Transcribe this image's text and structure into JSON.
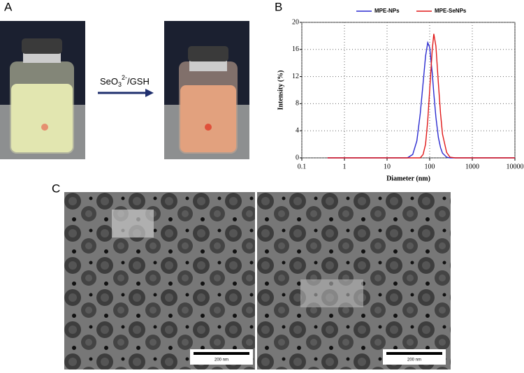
{
  "panel_labels": [
    "A",
    "B",
    "C"
  ],
  "reaction": {
    "parts": [
      "SeO",
      "3",
      "2-",
      "/GSH"
    ]
  },
  "scale_bars": [
    "200 nm",
    "200 nm"
  ],
  "chart_data": {
    "type": "line",
    "xlabel": "Diameter (nm)",
    "ylabel": "Intensity (%)",
    "x": [
      0.4,
      1,
      10,
      30,
      40,
      50,
      60,
      70,
      80,
      90,
      100,
      115,
      125,
      140,
      160,
      180,
      200,
      250,
      300,
      400,
      1000,
      10000
    ],
    "series": [
      {
        "name": "MPE-NPs",
        "color": "#2a2ad0",
        "values": [
          0,
          0,
          0,
          0,
          0.5,
          2.5,
          6.5,
          11,
          15,
          17,
          16.3,
          12.5,
          9.5,
          6,
          3,
          1.5,
          0.7,
          0.1,
          0,
          0,
          0,
          0
        ]
      },
      {
        "name": "MPE-SeNPs",
        "color": "#e01818",
        "values": [
          0,
          0,
          0,
          0,
          0,
          0,
          0,
          0.5,
          2,
          5.5,
          10,
          16,
          18.3,
          16.5,
          11,
          6.5,
          3.5,
          0.8,
          0.1,
          0,
          0,
          0
        ]
      }
    ],
    "xlim": [
      0.1,
      10000
    ],
    "xticks": [
      0.1,
      1,
      10,
      100,
      1000,
      10000
    ],
    "xscale": "log",
    "ylim": [
      0,
      20
    ],
    "yticks": [
      0,
      4,
      8,
      12,
      16,
      20
    ],
    "grid": true,
    "legend": "top"
  }
}
